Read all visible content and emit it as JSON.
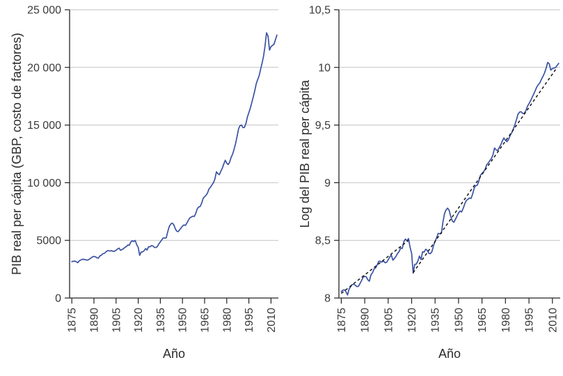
{
  "figure": {
    "background": "#ffffff",
    "line_color": "#3b52a3",
    "trend_color": "#141414",
    "grid_color": "#c2c2c2",
    "axis_color": "#222222",
    "text_color": "#3a3a3a",
    "title_color": "#2b2b2b"
  },
  "chart_data": [
    {
      "type": "line",
      "panel": "left",
      "title": "",
      "xlabel": "Año",
      "ylabel": "PIB real per cápita (GBP, costo de factores)",
      "xlim": [
        1873.5,
        2015
      ],
      "ylim": [
        0,
        25000
      ],
      "grid": "horizontal",
      "legend": "none",
      "x_tick_values": [
        1875,
        1890,
        1905,
        1920,
        1935,
        1950,
        1965,
        1980,
        1995,
        2010
      ],
      "x_tick_labels": [
        "1875",
        "1890",
        "1905",
        "1920",
        "1935",
        "1950",
        "1965",
        "1980",
        "1995",
        "2010"
      ],
      "x_tick_rotation": -90,
      "y_tick_values": [
        0,
        5000,
        10000,
        15000,
        20000,
        25000
      ],
      "y_tick_labels": [
        "0",
        "5000",
        "10 000",
        "15 000",
        "20 000",
        "25 000"
      ],
      "series": [
        {
          "name": "PIB real per cápita del Reino Unido",
          "style": "solid",
          "color": "#3b52a3",
          "years": {
            "start": 1875,
            "end": 2014,
            "step": 1
          },
          "values": [
            3150,
            3190,
            3200,
            3150,
            3060,
            3220,
            3290,
            3350,
            3360,
            3330,
            3290,
            3300,
            3380,
            3470,
            3570,
            3600,
            3580,
            3490,
            3450,
            3650,
            3710,
            3840,
            3870,
            3980,
            4100,
            4100,
            4070,
            4110,
            4050,
            4060,
            4150,
            4250,
            4330,
            4140,
            4200,
            4280,
            4390,
            4460,
            4600,
            4580,
            4860,
            4970,
            4900,
            4990,
            4620,
            4390,
            3700,
            3990,
            4000,
            4110,
            4290,
            4160,
            4450,
            4440,
            4550,
            4510,
            4390,
            4380,
            4460,
            4700,
            4870,
            5040,
            5220,
            5200,
            5220,
            5740,
            6190,
            6400,
            6500,
            6380,
            6050,
            5810,
            5750,
            5900,
            6070,
            6240,
            6340,
            6290,
            6500,
            6750,
            6950,
            7020,
            7100,
            7070,
            7340,
            7730,
            7900,
            7930,
            8230,
            8640,
            8790,
            8910,
            9110,
            9470,
            9610,
            9820,
            9990,
            10320,
            10950,
            10780,
            10700,
            10990,
            11250,
            11630,
            11950,
            11700,
            11570,
            11790,
            12210,
            12490,
            12910,
            13390,
            13990,
            14670,
            14950,
            15000,
            14780,
            14790,
            15130,
            15700,
            16080,
            16470,
            16950,
            17460,
            17980,
            18580,
            18950,
            19280,
            19870,
            20400,
            21000,
            21900,
            23000,
            22700,
            21500,
            21800,
            21900,
            22000,
            22400,
            22800
          ]
        }
      ]
    },
    {
      "type": "line",
      "panel": "right",
      "title": "",
      "xlabel": "Año",
      "ylabel": "Log del PIB real per cápita",
      "xlim": [
        1873.5,
        2015
      ],
      "ylim": [
        8,
        10.5
      ],
      "grid": "horizontal",
      "legend": "none",
      "x_tick_values": [
        1875,
        1890,
        1905,
        1920,
        1935,
        1950,
        1965,
        1980,
        1995,
        2010
      ],
      "x_tick_labels": [
        "1875",
        "1890",
        "1905",
        "1920",
        "1935",
        "1950",
        "1965",
        "1980",
        "1995",
        "2010"
      ],
      "x_tick_rotation": -90,
      "y_tick_values": [
        8,
        8.5,
        9,
        9.5,
        10,
        10.5
      ],
      "y_tick_labels": [
        "8",
        "8,5",
        "9",
        "9,5",
        "10",
        "10,5"
      ],
      "series": [
        {
          "name": "Log natural del PIB real per cápita del Reino Unido",
          "style": "solid",
          "color": "#3b52a3",
          "derived": "natural_log_of_left_panel_values"
        },
        {
          "name": "Tendencia de crecimiento constante (línea discontinua)",
          "style": "dashed",
          "color": "#141414",
          "segments": [
            [
              [
                1875,
                8.04
              ],
              [
                1918,
                8.5
              ]
            ],
            [
              [
                1921,
                8.22
              ],
              [
                2013,
                10.0
              ]
            ]
          ]
        }
      ]
    }
  ]
}
